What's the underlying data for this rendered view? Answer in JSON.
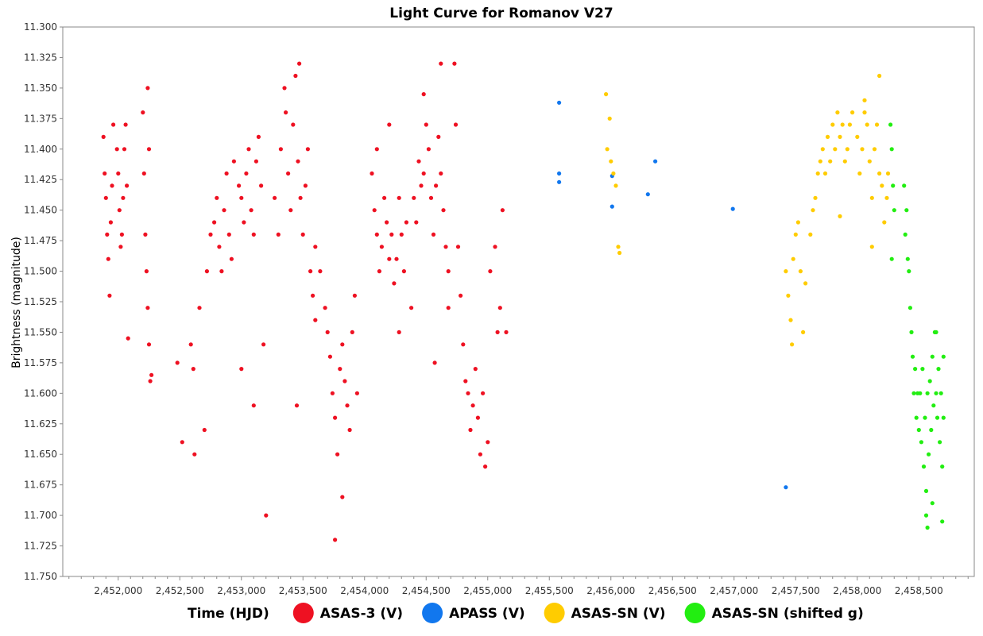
{
  "chart_data": {
    "type": "scatter",
    "title": "Light Curve for Romanov V27",
    "xlabel": "Time (HJD)",
    "ylabel": "Brightness (magnitude)",
    "xlim": [
      2451550,
      2458950
    ],
    "ylim": [
      11.3,
      11.75
    ],
    "y_inverted": true,
    "grid": false,
    "legend_placement": "bottom",
    "x_ticks": [
      2452000,
      2452500,
      2453000,
      2453500,
      2454000,
      2454500,
      2455000,
      2455500,
      2456000,
      2456500,
      2457000,
      2457500,
      2458000,
      2458500
    ],
    "x_tick_labels": [
      "2,452,000",
      "2,452,500",
      "2,453,000",
      "2,453,500",
      "2,454,000",
      "2,454,500",
      "2,455,000",
      "2,455,500",
      "2,456,000",
      "2,456,500",
      "2,457,000",
      "2,457,500",
      "2,458,000",
      "2,458,500"
    ],
    "y_ticks": [
      11.3,
      11.325,
      11.35,
      11.375,
      11.4,
      11.425,
      11.45,
      11.475,
      11.5,
      11.525,
      11.55,
      11.575,
      11.6,
      11.625,
      11.65,
      11.675,
      11.7,
      11.725,
      11.75
    ],
    "y_tick_labels": [
      "11.300",
      "11.325",
      "11.350",
      "11.375",
      "11.400",
      "11.425",
      "11.450",
      "11.475",
      "11.500",
      "11.525",
      "11.550",
      "11.575",
      "11.600",
      "11.625",
      "11.650",
      "11.675",
      "11.700",
      "11.725",
      "11.750"
    ],
    "series": [
      {
        "name": "ASAS-3 (V)",
        "color": "#ee1122",
        "points": [
          [
            2451880,
            11.39
          ],
          [
            2451890,
            11.42
          ],
          [
            2451900,
            11.44
          ],
          [
            2451910,
            11.47
          ],
          [
            2451920,
            11.49
          ],
          [
            2451930,
            11.52
          ],
          [
            2451940,
            11.46
          ],
          [
            2451950,
            11.43
          ],
          [
            2451960,
            11.38
          ],
          [
            2451990,
            11.4
          ],
          [
            2452000,
            11.42
          ],
          [
            2452010,
            11.45
          ],
          [
            2452020,
            11.48
          ],
          [
            2452030,
            11.47
          ],
          [
            2452040,
            11.44
          ],
          [
            2452050,
            11.4
          ],
          [
            2452060,
            11.38
          ],
          [
            2452070,
            11.43
          ],
          [
            2452080,
            11.555
          ],
          [
            2452200,
            11.37
          ],
          [
            2452210,
            11.42
          ],
          [
            2452220,
            11.47
          ],
          [
            2452230,
            11.5
          ],
          [
            2452240,
            11.53
          ],
          [
            2452250,
            11.56
          ],
          [
            2452260,
            11.59
          ],
          [
            2452270,
            11.585
          ],
          [
            2452240,
            11.35
          ],
          [
            2452250,
            11.4
          ],
          [
            2452480,
            11.575
          ],
          [
            2452520,
            11.64
          ],
          [
            2452590,
            11.56
          ],
          [
            2452610,
            11.58
          ],
          [
            2452620,
            11.65
          ],
          [
            2452660,
            11.53
          ],
          [
            2452700,
            11.63
          ],
          [
            2452720,
            11.5
          ],
          [
            2452750,
            11.47
          ],
          [
            2452780,
            11.46
          ],
          [
            2452800,
            11.44
          ],
          [
            2452820,
            11.48
          ],
          [
            2452840,
            11.5
          ],
          [
            2452860,
            11.45
          ],
          [
            2452880,
            11.42
          ],
          [
            2452900,
            11.47
          ],
          [
            2452920,
            11.49
          ],
          [
            2452940,
            11.41
          ],
          [
            2452980,
            11.43
          ],
          [
            2453000,
            11.44
          ],
          [
            2453020,
            11.46
          ],
          [
            2453040,
            11.42
          ],
          [
            2453060,
            11.4
          ],
          [
            2453080,
            11.45
          ],
          [
            2453100,
            11.47
          ],
          [
            2453120,
            11.41
          ],
          [
            2453140,
            11.39
          ],
          [
            2453160,
            11.43
          ],
          [
            2453180,
            11.56
          ],
          [
            2453000,
            11.58
          ],
          [
            2453100,
            11.61
          ],
          [
            2453200,
            11.7
          ],
          [
            2453270,
            11.44
          ],
          [
            2453300,
            11.47
          ],
          [
            2453320,
            11.4
          ],
          [
            2453350,
            11.35
          ],
          [
            2453360,
            11.37
          ],
          [
            2453380,
            11.42
          ],
          [
            2453400,
            11.45
          ],
          [
            2453420,
            11.38
          ],
          [
            2453440,
            11.34
          ],
          [
            2453460,
            11.41
          ],
          [
            2453480,
            11.44
          ],
          [
            2453500,
            11.47
          ],
          [
            2453520,
            11.43
          ],
          [
            2453540,
            11.4
          ],
          [
            2453560,
            11.5
          ],
          [
            2453580,
            11.52
          ],
          [
            2453600,
            11.54
          ],
          [
            2453450,
            11.61
          ],
          [
            2453470,
            11.33
          ],
          [
            2453600,
            11.48
          ],
          [
            2453640,
            11.5
          ],
          [
            2453680,
            11.53
          ],
          [
            2453700,
            11.55
          ],
          [
            2453720,
            11.57
          ],
          [
            2453740,
            11.6
          ],
          [
            2453760,
            11.62
          ],
          [
            2453780,
            11.65
          ],
          [
            2453800,
            11.58
          ],
          [
            2453820,
            11.56
          ],
          [
            2453840,
            11.59
          ],
          [
            2453860,
            11.61
          ],
          [
            2453880,
            11.63
          ],
          [
            2453900,
            11.55
          ],
          [
            2453920,
            11.52
          ],
          [
            2453940,
            11.6
          ],
          [
            2453760,
            11.72
          ],
          [
            2453820,
            11.685
          ],
          [
            2454060,
            11.42
          ],
          [
            2454080,
            11.45
          ],
          [
            2454100,
            11.47
          ],
          [
            2454120,
            11.5
          ],
          [
            2454140,
            11.48
          ],
          [
            2454160,
            11.44
          ],
          [
            2454180,
            11.46
          ],
          [
            2454200,
            11.49
          ],
          [
            2454220,
            11.47
          ],
          [
            2454240,
            11.51
          ],
          [
            2454260,
            11.49
          ],
          [
            2454280,
            11.44
          ],
          [
            2454300,
            11.47
          ],
          [
            2454320,
            11.5
          ],
          [
            2454340,
            11.46
          ],
          [
            2454100,
            11.4
          ],
          [
            2454200,
            11.38
          ],
          [
            2454280,
            11.55
          ],
          [
            2454380,
            11.53
          ],
          [
            2454400,
            11.44
          ],
          [
            2454420,
            11.46
          ],
          [
            2454440,
            11.41
          ],
          [
            2454460,
            11.43
          ],
          [
            2454480,
            11.42
          ],
          [
            2454500,
            11.38
          ],
          [
            2454520,
            11.4
          ],
          [
            2454540,
            11.44
          ],
          [
            2454560,
            11.47
          ],
          [
            2454580,
            11.43
          ],
          [
            2454600,
            11.39
          ],
          [
            2454620,
            11.42
          ],
          [
            2454640,
            11.45
          ],
          [
            2454660,
            11.48
          ],
          [
            2454680,
            11.5
          ],
          [
            2454480,
            11.355
          ],
          [
            2454570,
            11.575
          ],
          [
            2454620,
            11.33
          ],
          [
            2454730,
            11.33
          ],
          [
            2454680,
            11.53
          ],
          [
            2454740,
            11.38
          ],
          [
            2454760,
            11.48
          ],
          [
            2454780,
            11.52
          ],
          [
            2454800,
            11.56
          ],
          [
            2454820,
            11.59
          ],
          [
            2454840,
            11.6
          ],
          [
            2454860,
            11.63
          ],
          [
            2454880,
            11.61
          ],
          [
            2454900,
            11.58
          ],
          [
            2454920,
            11.62
          ],
          [
            2454940,
            11.65
          ],
          [
            2454960,
            11.6
          ],
          [
            2454980,
            11.66
          ],
          [
            2455000,
            11.64
          ],
          [
            2455020,
            11.5
          ],
          [
            2455060,
            11.48
          ],
          [
            2455080,
            11.55
          ],
          [
            2455100,
            11.53
          ],
          [
            2455120,
            11.45
          ],
          [
            2455150,
            11.55
          ]
        ]
      },
      {
        "name": "APASS (V)",
        "color": "#1177ee",
        "points": [
          [
            2455580,
            11.362
          ],
          [
            2455580,
            11.42
          ],
          [
            2455580,
            11.427
          ],
          [
            2456010,
            11.422
          ],
          [
            2456010,
            11.447
          ],
          [
            2456300,
            11.437
          ],
          [
            2456360,
            11.41
          ],
          [
            2456990,
            11.449
          ],
          [
            2457420,
            11.677
          ]
        ]
      },
      {
        "name": "ASAS-SN (V)",
        "color": "#ffcc00",
        "points": [
          [
            2455960,
            11.355
          ],
          [
            2455990,
            11.375
          ],
          [
            2455970,
            11.4
          ],
          [
            2456000,
            11.41
          ],
          [
            2456020,
            11.42
          ],
          [
            2456040,
            11.43
          ],
          [
            2456060,
            11.48
          ],
          [
            2456070,
            11.485
          ],
          [
            2457420,
            11.5
          ],
          [
            2457440,
            11.52
          ],
          [
            2457460,
            11.54
          ],
          [
            2457470,
            11.56
          ],
          [
            2457480,
            11.49
          ],
          [
            2457500,
            11.47
          ],
          [
            2457520,
            11.46
          ],
          [
            2457540,
            11.5
          ],
          [
            2457560,
            11.55
          ],
          [
            2457580,
            11.51
          ],
          [
            2457620,
            11.47
          ],
          [
            2457640,
            11.45
          ],
          [
            2457660,
            11.44
          ],
          [
            2457680,
            11.42
          ],
          [
            2457700,
            11.41
          ],
          [
            2457720,
            11.4
          ],
          [
            2457740,
            11.42
          ],
          [
            2457760,
            11.39
          ],
          [
            2457780,
            11.41
          ],
          [
            2457800,
            11.38
          ],
          [
            2457820,
            11.4
          ],
          [
            2457840,
            11.37
          ],
          [
            2457860,
            11.39
          ],
          [
            2457880,
            11.38
          ],
          [
            2457900,
            11.41
          ],
          [
            2457920,
            11.4
          ],
          [
            2457940,
            11.38
          ],
          [
            2457960,
            11.37
          ],
          [
            2458000,
            11.39
          ],
          [
            2458020,
            11.42
          ],
          [
            2458040,
            11.4
          ],
          [
            2458060,
            11.37
          ],
          [
            2458080,
            11.38
          ],
          [
            2458100,
            11.41
          ],
          [
            2458120,
            11.44
          ],
          [
            2458140,
            11.4
          ],
          [
            2458160,
            11.38
          ],
          [
            2458180,
            11.42
          ],
          [
            2458200,
            11.43
          ],
          [
            2458220,
            11.46
          ],
          [
            2458240,
            11.44
          ],
          [
            2458250,
            11.42
          ],
          [
            2458180,
            11.34
          ],
          [
            2458060,
            11.36
          ],
          [
            2457860,
            11.455
          ],
          [
            2458120,
            11.48
          ]
        ]
      },
      {
        "name": "ASAS-SN (shifted g)",
        "color": "#22ee11",
        "points": [
          [
            2458270,
            11.38
          ],
          [
            2458280,
            11.4
          ],
          [
            2458290,
            11.43
          ],
          [
            2458300,
            11.45
          ],
          [
            2458280,
            11.49
          ],
          [
            2458380,
            11.43
          ],
          [
            2458390,
            11.47
          ],
          [
            2458400,
            11.45
          ],
          [
            2458410,
            11.49
          ],
          [
            2458420,
            11.5
          ],
          [
            2458430,
            11.53
          ],
          [
            2458440,
            11.55
          ],
          [
            2458450,
            11.57
          ],
          [
            2458460,
            11.6
          ],
          [
            2458470,
            11.58
          ],
          [
            2458480,
            11.62
          ],
          [
            2458490,
            11.6
          ],
          [
            2458500,
            11.63
          ],
          [
            2458510,
            11.6
          ],
          [
            2458520,
            11.64
          ],
          [
            2458530,
            11.58
          ],
          [
            2458540,
            11.66
          ],
          [
            2458550,
            11.62
          ],
          [
            2458560,
            11.68
          ],
          [
            2458570,
            11.6
          ],
          [
            2458580,
            11.65
          ],
          [
            2458590,
            11.59
          ],
          [
            2458600,
            11.63
          ],
          [
            2458610,
            11.57
          ],
          [
            2458620,
            11.61
          ],
          [
            2458630,
            11.55
          ],
          [
            2458640,
            11.6
          ],
          [
            2458650,
            11.62
          ],
          [
            2458660,
            11.58
          ],
          [
            2458670,
            11.64
          ],
          [
            2458680,
            11.6
          ],
          [
            2458690,
            11.66
          ],
          [
            2458700,
            11.62
          ],
          [
            2458560,
            11.7
          ],
          [
            2458570,
            11.71
          ],
          [
            2458610,
            11.69
          ],
          [
            2458690,
            11.705
          ],
          [
            2458640,
            11.55
          ],
          [
            2458700,
            11.57
          ]
        ]
      }
    ]
  }
}
